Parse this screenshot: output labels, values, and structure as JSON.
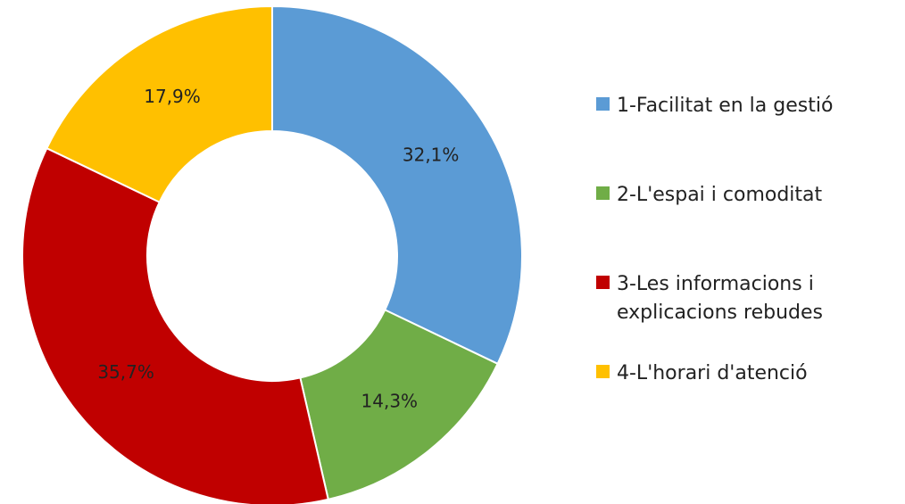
{
  "chart_data": {
    "type": "donut",
    "categories": [
      "1-Facilitat en la gestió",
      "2-L'espai i comoditat",
      "3-Les informacions i explicacions rebudes",
      "4-L'horari d'atenció"
    ],
    "values": [
      32.1,
      14.3,
      35.7,
      17.9
    ],
    "value_labels": [
      "32,1%",
      "14,3%",
      "35,7%",
      "17,9%"
    ],
    "colors": [
      "#5b9bd5",
      "#70ad47",
      "#c00000",
      "#ffc000"
    ],
    "legend": "right"
  }
}
